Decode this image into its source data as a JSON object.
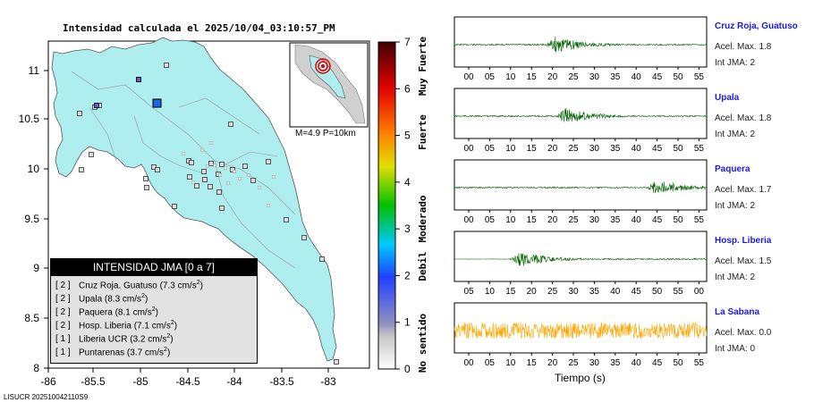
{
  "map": {
    "title": "Intensidad calculada el 2025/10/04_03:10:57_PM",
    "x_ticks": [
      "-86",
      "-85.5",
      "-85",
      "-84.5",
      "-84",
      "-83.5",
      "-83"
    ],
    "y_ticks": [
      "11",
      "10.5",
      "10",
      "9.5",
      "9",
      "8.5",
      "8"
    ],
    "land_color": "#aeeeee",
    "inset_label": "M=4.9 P=10km",
    "footer_id": "LISUCR 202510042110S9"
  },
  "legend": {
    "header": "INTENSIDAD JMA [0 a 7]",
    "rows": [
      {
        "level": "[ 2 ]",
        "text": "Cruz Roja. Guatuso (7.3 cm/s",
        "sup": "2",
        "close": ")"
      },
      {
        "level": "[ 2 ]",
        "text": "Upala (8.3 cm/s",
        "sup": "2",
        "close": ")"
      },
      {
        "level": "[ 2 ]",
        "text": "Paquera (8.1 cm/s",
        "sup": "2",
        "close": ")"
      },
      {
        "level": "[ 2 ]",
        "text": "Hosp. Liberia (7.1 cm/s",
        "sup": "2",
        "close": ")"
      },
      {
        "level": "[ 1 ]",
        "text": "Liberia UCR (3.2 cm/s",
        "sup": "2",
        "close": ")"
      },
      {
        "level": "[ 1 ]",
        "text": "Puntarenas (3.7 cm/s",
        "sup": "2",
        "close": ")"
      }
    ]
  },
  "scale": {
    "ticks": [
      "7",
      "6",
      "5",
      "4",
      "3",
      "2",
      "1",
      "0"
    ],
    "labels": [
      "Muy Fuerte",
      "Fuerte",
      "Moderado",
      "Debil",
      "No sentido"
    ]
  },
  "stations": [
    {
      "name": "Cruz Roja, Guatuso",
      "accel": "Acel. Max. 1.8",
      "jma": "Int JMA: 2",
      "color": "#006400",
      "onset": 0.36,
      "ticks": [
        "00",
        "05",
        "10",
        "15",
        "20",
        "25",
        "30",
        "35",
        "40",
        "45",
        "50",
        "55"
      ]
    },
    {
      "name": "Upala",
      "accel": "Acel. Max. 1.8",
      "jma": "Int JMA: 2",
      "color": "#006400",
      "onset": 0.4,
      "ticks": [
        "00",
        "05",
        "10",
        "15",
        "20",
        "25",
        "30",
        "35",
        "40",
        "45",
        "50",
        "55"
      ]
    },
    {
      "name": "Paquera",
      "accel": "Acel. Max. 1.7",
      "jma": "Int JMA: 2",
      "color": "#006400",
      "onset": 0.76,
      "ticks": [
        "00",
        "05",
        "10",
        "15",
        "20",
        "25",
        "30",
        "35",
        "40",
        "45",
        "50",
        "55"
      ]
    },
    {
      "name": "Hosp. Liberia",
      "accel": "Acel. Max. 1.5",
      "jma": "Int JMA: 2",
      "color": "#006400",
      "onset": 0.22,
      "ticks": [
        "05",
        "10",
        "15",
        "20",
        "25",
        "30",
        "35",
        "40",
        "45",
        "50",
        "55",
        "00"
      ]
    },
    {
      "name": "La Sabana",
      "accel": "Acel. Max. 0.0",
      "jma": "Int JMA: 0",
      "color": "#ffa500",
      "onset": -1,
      "ticks": [
        "00",
        "05",
        "10",
        "15",
        "20",
        "25",
        "30",
        "35",
        "40",
        "45",
        "50",
        "55"
      ]
    }
  ],
  "time_axis_label": "Tiempo (s)"
}
